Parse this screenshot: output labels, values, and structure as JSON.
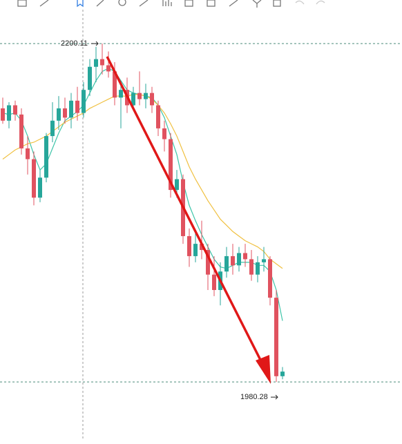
{
  "chart_data": {
    "type": "candlestick",
    "open": [
      2158,
      2150,
      2160,
      2154,
      2132,
      2125,
      2100,
      2113,
      2140,
      2150,
      2158,
      2152,
      2163,
      2155,
      2170,
      2185,
      2190,
      2186,
      2182,
      2165,
      2170,
      2160,
      2168,
      2164,
      2168,
      2160,
      2145,
      2138,
      2105,
      2112,
      2075,
      2062,
      2070,
      2066,
      2050,
      2040,
      2052,
      2062,
      2056,
      2064,
      2060,
      2050,
      2058,
      2060,
      2035,
      1984
    ],
    "high": [
      2165,
      2162,
      2163,
      2158,
      2140,
      2130,
      2118,
      2142,
      2162,
      2166,
      2165,
      2168,
      2172,
      2175,
      2190,
      2198,
      2200.11,
      2195,
      2188,
      2176,
      2178,
      2172,
      2182,
      2174,
      2172,
      2163,
      2150,
      2142,
      2118,
      2115,
      2080,
      2078,
      2085,
      2070,
      2062,
      2058,
      2068,
      2070,
      2068,
      2070,
      2066,
      2062,
      2068,
      2062,
      2040,
      1990
    ],
    "low": [
      2148,
      2145,
      2150,
      2128,
      2115,
      2095,
      2097,
      2110,
      2136,
      2144,
      2148,
      2145,
      2150,
      2152,
      2166,
      2175,
      2180,
      2178,
      2160,
      2145,
      2155,
      2158,
      2160,
      2158,
      2155,
      2140,
      2130,
      2100,
      2100,
      2070,
      2055,
      2058,
      2060,
      2040,
      2036,
      2030,
      2048,
      2050,
      2052,
      2055,
      2046,
      2045,
      2052,
      2030,
      1980.28,
      1982
    ],
    "close": [
      2150,
      2160,
      2154,
      2132,
      2125,
      2100,
      2113,
      2140,
      2150,
      2158,
      2152,
      2163,
      2155,
      2170,
      2185,
      2190,
      2186,
      2182,
      2165,
      2170,
      2160,
      2168,
      2164,
      2168,
      2160,
      2145,
      2138,
      2105,
      2112,
      2075,
      2062,
      2070,
      2066,
      2050,
      2040,
      2052,
      2062,
      2056,
      2064,
      2060,
      2050,
      2058,
      2060,
      2035,
      1984,
      1987
    ],
    "up_color": "#26a69a",
    "down_color": "#e0525f",
    "series": [
      {
        "color": "#3cc4a8",
        "values": [
          2155,
          2154,
          2155,
          2150,
          2140,
          2128,
          2118,
          2122,
          2132,
          2142,
          2150,
          2153,
          2156,
          2160,
          2168,
          2176,
          2182,
          2184,
          2182,
          2176,
          2170,
          2168,
          2167,
          2166,
          2165,
          2160,
          2152,
          2140,
          2128,
          2110,
          2095,
          2085,
          2076,
          2068,
          2060,
          2055,
          2054,
          2056,
          2058,
          2058,
          2058,
          2056,
          2056,
          2052,
          2040,
          2020
        ]
      },
      {
        "color": "#f0c040",
        "values": [
          2125,
          2128,
          2131,
          2133,
          2135,
          2136,
          2138,
          2140,
          2143,
          2146,
          2149,
          2151,
          2153,
          2155,
          2158,
          2160,
          2162,
          2164,
          2166,
          2166,
          2166,
          2167,
          2167,
          2166,
          2164,
          2160,
          2155,
          2148,
          2140,
          2130,
          2120,
          2112,
          2105,
          2098,
          2092,
          2086,
          2082,
          2078,
          2075,
          2072,
          2070,
          2068,
          2065,
          2060,
          2057,
          2054
        ]
      }
    ],
    "price_lines": [
      2200.11,
      1980.28
    ],
    "ylim": [
      1942.2,
      2228.4
    ]
  }
}
